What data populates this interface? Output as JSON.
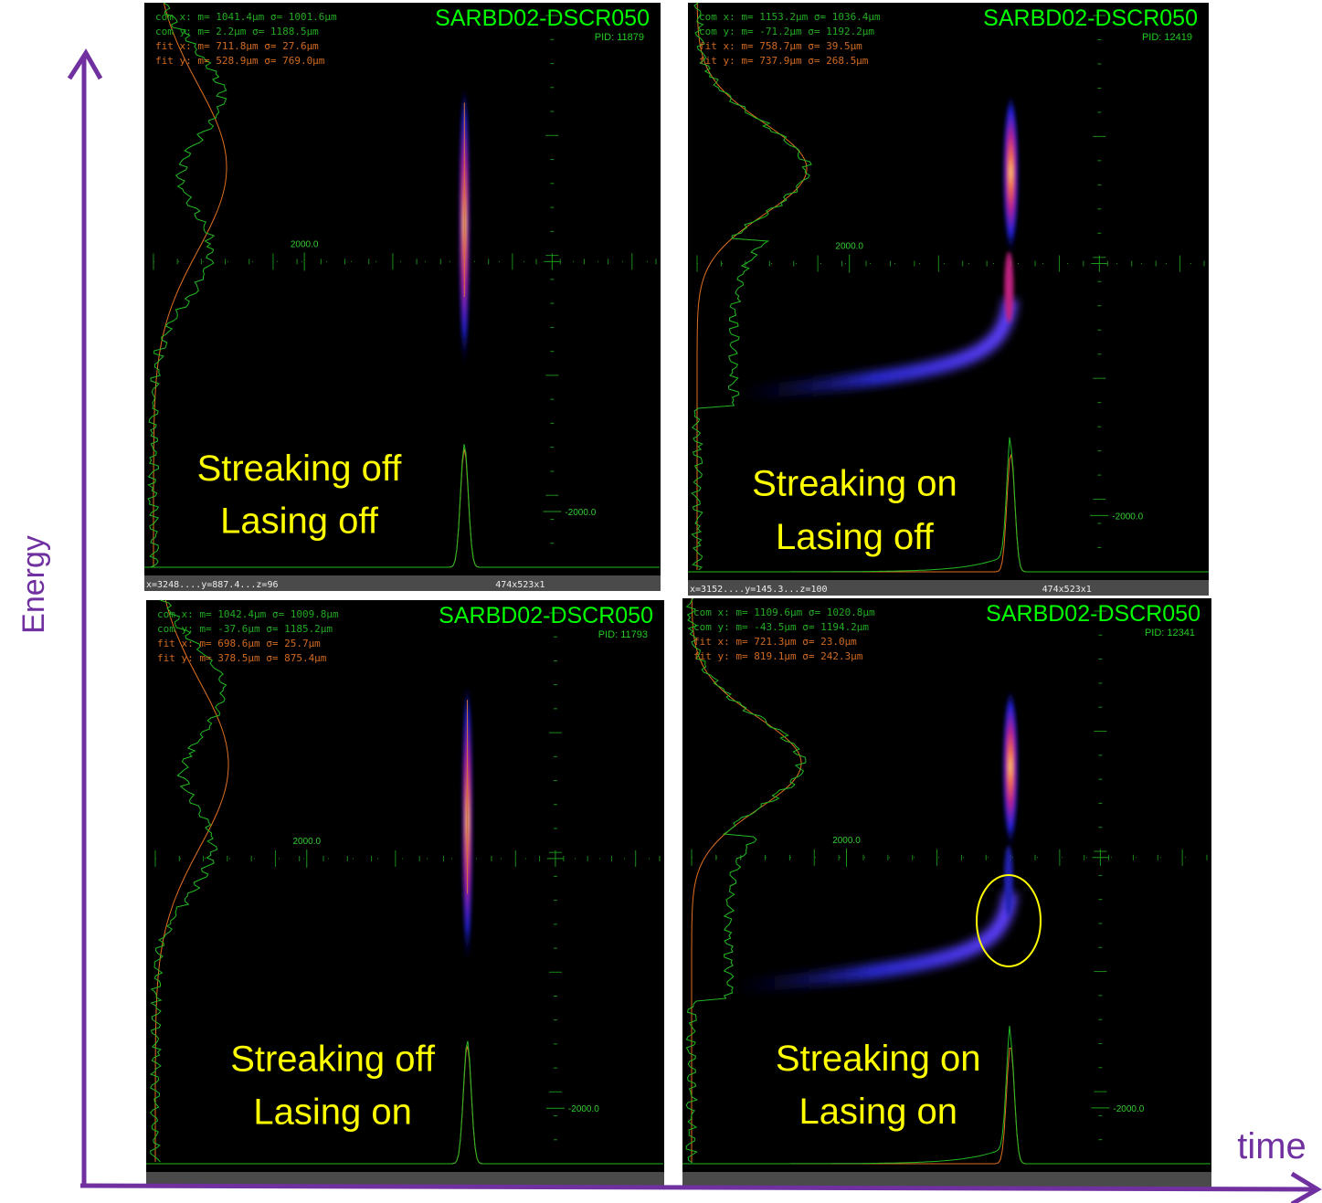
{
  "axes": {
    "y_label": "Energy",
    "x_label": "time"
  },
  "panels": [
    {
      "title": "SARBD02-DSCR050",
      "pid": "PID: 11879",
      "stats": [
        "com x:  m= 1041.4µm σ= 1001.6µm",
        "com y:  m=    2.2µm σ= 1188.5µm",
        "fit x:  m=  711.8µm σ=   27.6µm",
        "fit y:  m=  528.9µm σ=  769.0µm"
      ],
      "center_label": "2000.0",
      "lower_label": "-2000.0",
      "status": [
        "x=3248....y=887.4...z=96",
        "474x523x1"
      ],
      "caption": [
        "Streaking off",
        "Lasing off"
      ]
    },
    {
      "title": "SARBD02-DSCR050",
      "pid": "PID: 12419",
      "stats": [
        "com x:  m= 1153.2µm σ= 1036.4µm",
        "com y:  m=  -71.2µm σ= 1192.2µm",
        "fit x:  m=  758.7µm σ=   39.5µm",
        "fit y:  m=  737.9µm σ=  268.5µm"
      ],
      "center_label": "2000.0",
      "lower_label": "-2000.0",
      "status": [
        "x=3152....y=145.3...z=100",
        "474x523x1"
      ],
      "caption": [
        "Streaking on",
        "Lasing off"
      ]
    },
    {
      "title": "SARBD02-DSCR050",
      "pid": "PID: 11793",
      "stats": [
        "com x:  m= 1042.4µm σ= 1009.8µm",
        "com y:  m=  -37.6µm σ= 1185.2µm",
        "fit x:  m=  698.6µm σ=   25.7µm",
        "fit y:  m=  378.5µm σ=  875.4µm"
      ],
      "center_label": "2000.0",
      "lower_label": "-2000.0",
      "caption": [
        "Streaking off",
        "Lasing on"
      ]
    },
    {
      "title": "SARBD02-DSCR050",
      "pid": "PID: 12341",
      "stats": [
        "com x:  m= 1109.6µm σ= 1020.8µm",
        "com y:  m=  -43.5µm σ= 1194.2µm",
        "fit x:  m=  721.3µm σ=   23.0µm",
        "fit y:  m=  819.1µm σ=  242.3µm"
      ],
      "center_label": "2000.0",
      "lower_label": "-2000.0",
      "caption": [
        "Streaking on",
        "Lasing on"
      ]
    }
  ]
}
